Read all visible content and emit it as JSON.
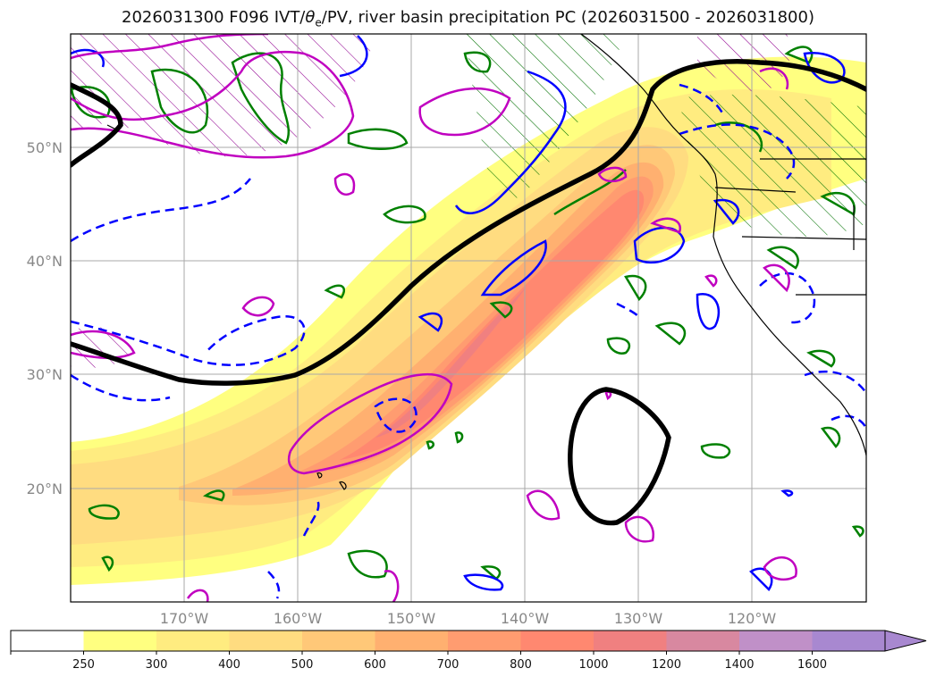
{
  "title": {
    "prefix": "2026031300 F096 IVT/",
    "theta": "θ",
    "theta_sub": "e",
    "suffix": "/PV, river basin precipitation PC (2026031500 - 2026031800)"
  },
  "map": {
    "lat_labels": [
      "50°N",
      "40°N",
      "30°N",
      "20°N"
    ],
    "lon_labels": [
      "170°W",
      "160°W",
      "150°W",
      "140°W",
      "130°W",
      "120°W"
    ]
  },
  "colorbar": {
    "labels": [
      "250",
      "300",
      "400",
      "500",
      "600",
      "700",
      "800",
      "1000",
      "1200",
      "1400",
      "1600"
    ],
    "colors": [
      "#ffffff",
      "#ffff80",
      "#ffec80",
      "#ffdc80",
      "#ffc878",
      "#ffb070",
      "#ff9c70",
      "#ff8870",
      "#f08080",
      "#d888a0",
      "#c090c8",
      "#a888d0"
    ]
  },
  "colors": {
    "jet": "#000000",
    "pv_pos": "#c000c0",
    "pv_neg": "#0000ff",
    "theta": "#008000"
  }
}
